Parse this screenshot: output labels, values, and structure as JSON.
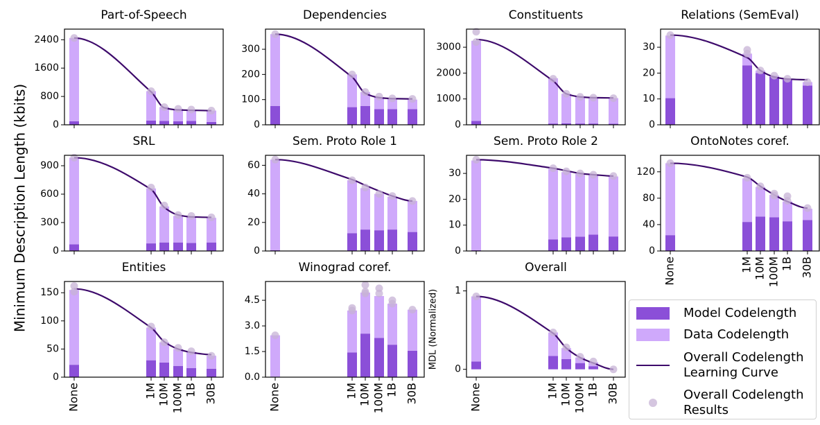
{
  "chart_data": {
    "type": "stacked-bar-curve",
    "ylabel": "Minimum Description Length (kbits)",
    "categories": [
      "None",
      "1M",
      "10M",
      "100M",
      "1B",
      "30B"
    ],
    "legend": [
      {
        "name": "Model Codelength",
        "color": "#8b4fd8"
      },
      {
        "name": "Data Codelength",
        "color": "#cfa9fb"
      },
      {
        "name": "Overall Codelength\nLearning Curve",
        "color": "#3d0a6b"
      },
      {
        "name": "Overall Codelength\nResults",
        "color": "#c7b3d6"
      }
    ],
    "panels": [
      {
        "title": "Part-of-Speech",
        "ylim": [
          0,
          2700
        ],
        "yticks": [
          0,
          800,
          1600,
          2400
        ],
        "model": [
          100,
          120,
          110,
          100,
          110,
          80
        ],
        "data": [
          2350,
          830,
          390,
          350,
          320,
          320
        ],
        "curve": [
          2450,
          930,
          480,
          420,
          410,
          400
        ],
        "results": [
          [
            2450
          ],
          [
            950
          ],
          [
            500
          ],
          [
            450
          ],
          [
            430
          ],
          [
            400
          ]
        ]
      },
      {
        "title": "Dependencies",
        "ylim": [
          0,
          380
        ],
        "yticks": [
          0,
          100,
          200,
          300
        ],
        "model": [
          75,
          70,
          75,
          62,
          62,
          62
        ],
        "data": [
          285,
          130,
          55,
          48,
          43,
          38
        ],
        "curve": [
          360,
          190,
          125,
          108,
          104,
          103
        ],
        "results": [
          [
            360
          ],
          [
            200
          ],
          [
            130
          ],
          [
            112
          ],
          [
            105
          ],
          [
            103
          ]
        ]
      },
      {
        "title": "Constituents",
        "ylim": [
          0,
          3700
        ],
        "yticks": [
          0,
          1000,
          2000,
          3000
        ],
        "model": [
          150,
          50,
          60,
          50,
          50,
          40
        ],
        "data": [
          3100,
          1750,
          1140,
          1050,
          1000,
          990
        ],
        "curve": [
          3300,
          1700,
          1200,
          1080,
          1050,
          1040
        ],
        "results": [
          [
            3600,
            3200
          ],
          [
            1780
          ],
          [
            1200
          ],
          [
            1080
          ],
          [
            1050
          ],
          [
            1030
          ]
        ]
      },
      {
        "title": "Relations (SemEval)",
        "ylim": [
          0,
          37
        ],
        "yticks": [
          0,
          10,
          20,
          30
        ],
        "model": [
          10.3,
          23,
          20,
          18.5,
          17.5,
          15.2
        ],
        "data": [
          24.2,
          4.5,
          1,
          0.5,
          0.3,
          1.3
        ],
        "curve": [
          34.7,
          26,
          21,
          18.5,
          17.7,
          17.4
        ],
        "results": [
          [
            34.7
          ],
          [
            29,
            27.5
          ],
          [
            21
          ],
          [
            19
          ],
          [
            17.8
          ],
          [
            16.5
          ]
        ]
      },
      {
        "title": "SRL",
        "ylim": [
          0,
          1010
        ],
        "yticks": [
          0,
          300,
          600,
          900
        ],
        "model": [
          70,
          80,
          90,
          90,
          85,
          90
        ],
        "data": [
          915,
          580,
          380,
          280,
          275,
          260
        ],
        "curve": [
          985,
          650,
          460,
          380,
          360,
          355
        ],
        "results": [
          [
            985
          ],
          [
            670
          ],
          [
            480
          ],
          [
            380
          ],
          [
            370
          ],
          [
            355
          ]
        ]
      },
      {
        "title": "Sem. Proto Role 1",
        "ylim": [
          0,
          67
        ],
        "yticks": [
          0,
          20,
          40,
          60
        ],
        "model": [
          0.5,
          12.5,
          15,
          14.5,
          15,
          13.3
        ],
        "data": [
          63.5,
          37,
          29,
          25.5,
          23,
          21.7
        ],
        "curve": [
          64,
          50,
          46,
          42,
          38.5,
          35
        ],
        "results": [
          [
            64
          ],
          [
            49.5
          ],
          [
            44.5
          ],
          [
            40
          ],
          [
            38.5
          ],
          [
            35
          ]
        ]
      },
      {
        "title": "Sem. Proto Role 2",
        "ylim": [
          0,
          37
        ],
        "yticks": [
          0,
          10,
          20,
          30
        ],
        "model": [
          0.3,
          4.5,
          5.3,
          5.5,
          6.3,
          5.6
        ],
        "data": [
          34.7,
          27.3,
          25.2,
          24.3,
          23,
          23.2
        ],
        "curve": [
          35.3,
          32,
          31,
          30,
          29.5,
          29
        ],
        "results": [
          [
            35.3
          ],
          [
            32
          ],
          [
            30.8
          ],
          [
            30
          ],
          [
            29.5
          ],
          [
            29
          ]
        ]
      },
      {
        "title": "OntoNotes coref.",
        "ylim": [
          0,
          145
        ],
        "yticks": [
          0,
          40,
          80,
          120
        ],
        "model": [
          24,
          44,
          52,
          51,
          45,
          47
        ],
        "data": [
          109,
          66,
          45,
          34,
          30,
          17
        ],
        "curve": [
          133,
          112,
          98,
          85,
          75,
          65
        ],
        "results": [
          [
            133
          ],
          [
            111
          ],
          [
            98
          ],
          [
            87,
            84
          ],
          [
            83,
            76
          ],
          [
            65
          ]
        ]
      },
      {
        "title": "Entities",
        "ylim": [
          0,
          170
        ],
        "yticks": [
          0,
          50,
          100,
          150
        ],
        "model": [
          22,
          30,
          26,
          20,
          16,
          15
        ],
        "data": [
          133,
          58,
          36,
          30,
          29,
          23
        ],
        "curve": [
          157,
          88,
          63,
          50,
          44,
          40
        ],
        "results": [
          [
            162,
            152
          ],
          [
            90
          ],
          [
            62
          ],
          [
            52
          ],
          [
            46
          ],
          [
            38
          ]
        ]
      },
      {
        "title": "Winograd coref.",
        "ylim": [
          0,
          5.6
        ],
        "yticks": [
          {
            "value": 0,
            "label": "0.0"
          },
          1.5,
          {
            "value": 3,
            "label": "3.0"
          },
          4.5
        ],
        "model": [
          0,
          1.45,
          2.55,
          2.3,
          1.9,
          1.55
        ],
        "data": [
          2.45,
          2.45,
          2.4,
          2.45,
          2.4,
          2.4
        ],
        "results": [
          [
            2.45
          ],
          [
            4.05,
            3.9
          ],
          [
            5.4,
            5.0,
            4.9
          ],
          [
            5.2,
            4.9
          ],
          [
            4.5,
            4.3
          ],
          [
            3.95
          ]
        ]
      },
      {
        "title": "Overall",
        "ylabel": "MDL (Normalized)",
        "ylim": [
          -0.1,
          1.12
        ],
        "yticks": [
          0,
          1
        ],
        "model": [
          0.1,
          0.17,
          0.13,
          0.08,
          0.04,
          0
        ],
        "data": [
          0.83,
          0.3,
          0.14,
          0.07,
          0.05,
          0
        ],
        "curve": [
          0.93,
          0.46,
          0.27,
          0.15,
          0.08,
          0.0
        ],
        "results": [
          [
            0.93
          ],
          [
            0.47
          ],
          [
            0.28
          ],
          [
            0.16
          ],
          [
            0.1
          ],
          [
            0.0
          ]
        ]
      }
    ]
  }
}
